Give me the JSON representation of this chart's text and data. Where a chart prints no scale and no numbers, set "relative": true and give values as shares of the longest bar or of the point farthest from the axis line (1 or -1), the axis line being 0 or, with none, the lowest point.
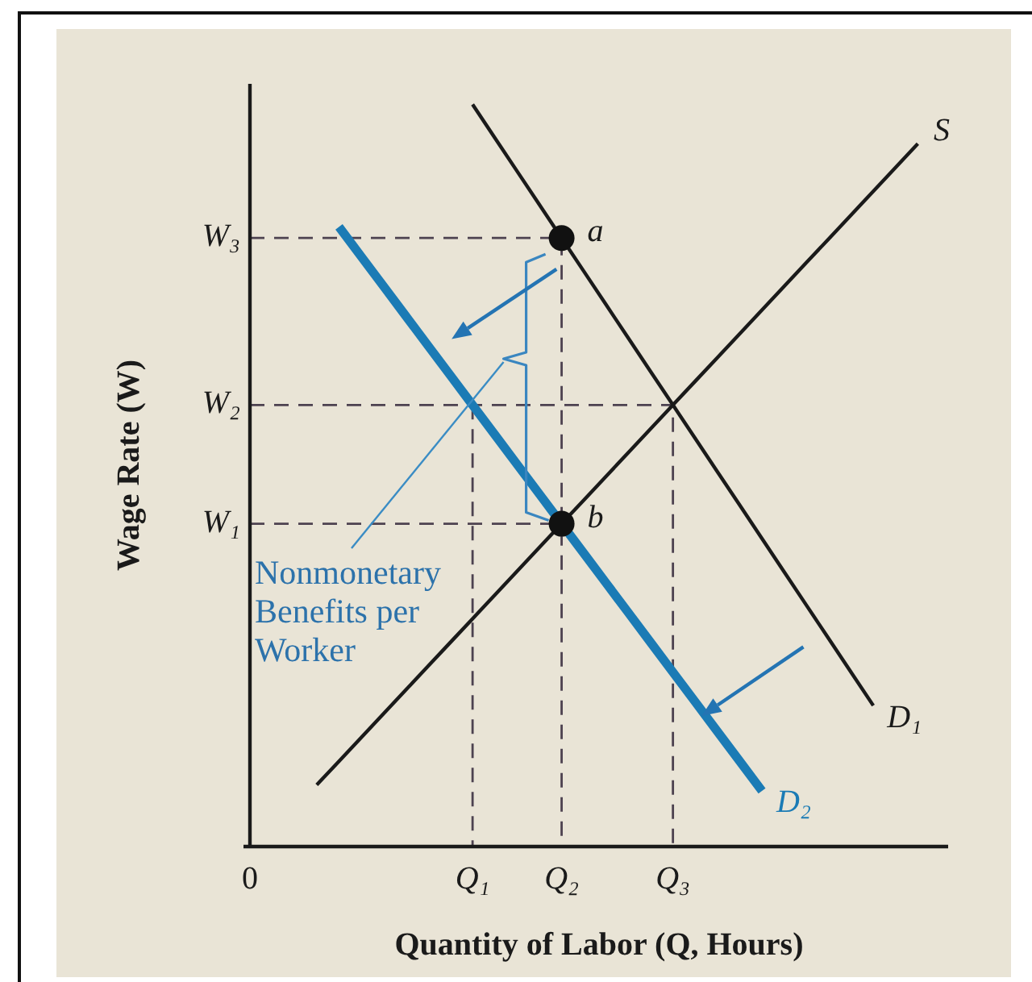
{
  "chart_data": {
    "type": "line",
    "relative": true,
    "xlabel": "Quantity of Labor (Q, Hours)",
    "ylabel": "Wage Rate (W)",
    "categories": [
      "0",
      null,
      null,
      null,
      null,
      null,
      null,
      null,
      null,
      null,
      "Q₁",
      null,
      null,
      null,
      "Q₂",
      null,
      null,
      null,
      null,
      "Q₃",
      null,
      null,
      null,
      null,
      null,
      null,
      null,
      null,
      null,
      null,
      null,
      null
    ],
    "series": [
      {
        "color": "#4d4250",
        "line_style": "dashed",
        "x": [
          "0",
          "Q₂",
          "Q₂"
        ],
        "values": [
          0.82,
          0.82,
          0
        ]
      },
      {
        "color": "#4d4250",
        "line_style": "dashed",
        "x": [
          "0",
          "Q₃",
          "Q₃"
        ],
        "values": [
          0.595,
          0.595,
          0
        ]
      },
      {
        "color": "#4d4250",
        "line_style": "dashed",
        "x": [
          "0",
          "Q₂"
        ],
        "values": [
          0.435,
          0.435
        ]
      },
      {
        "color": "#4d4250",
        "line_style": "dashed",
        "x": [
          "Q₁",
          "Q₁"
        ],
        "values": [
          0.595,
          0
        ]
      },
      {
        "name": "S",
        "color": "#1a1a1a",
        "values": [
          null,
          null,
          null,
          0.083,
          0.115,
          0.147,
          0.179,
          0.211,
          0.243,
          0.275,
          0.307,
          0.339,
          0.371,
          0.403,
          0.435,
          0.467,
          0.499,
          0.531,
          0.563,
          0.595,
          0.627,
          0.659,
          0.691,
          0.723,
          0.755,
          0.787,
          0.819,
          0.851,
          0.883,
          0.915,
          0.947,
          null
        ]
      },
      {
        "name": "D₁",
        "color": "#1a1a1a",
        "values": [
          null,
          null,
          null,
          null,
          null,
          null,
          null,
          null,
          null,
          null,
          1.0,
          0.955,
          0.91,
          0.865,
          0.82,
          0.775,
          0.73,
          0.685,
          0.64,
          0.595,
          0.55,
          0.505,
          0.46,
          0.415,
          0.37,
          0.325,
          0.28,
          0.235,
          0.19,
          null,
          null,
          null
        ]
      },
      {
        "name": "D₂",
        "color": "#1b7bb5",
        "values": [
          null,
          null,
          null,
          null,
          0.835,
          0.795,
          0.755,
          0.715,
          0.675,
          0.635,
          0.595,
          0.555,
          0.515,
          0.475,
          0.435,
          0.395,
          0.355,
          0.315,
          0.275,
          0.235,
          0.195,
          0.155,
          0.115,
          0.075,
          null,
          null,
          null,
          null,
          null,
          null,
          null,
          null
        ]
      },
      {
        "type": "scatter",
        "marker": "circle",
        "color": "#111111",
        "x": [
          "Q₂",
          "Q₂"
        ],
        "values": [
          0.82,
          0.435
        ]
      }
    ],
    "annotations": [
      {
        "text": "W₃",
        "x": "0",
        "y": 0.82
      },
      {
        "text": "W₂",
        "x": "0",
        "y": 0.595
      },
      {
        "text": "W₁",
        "x": "0",
        "y": 0.435
      },
      {
        "text": "a",
        "x": "Q₂",
        "y": 0.82
      },
      {
        "text": "b",
        "x": "Q₂",
        "y": 0.435
      },
      "Nonmonetary Benefits per Worker"
    ]
  }
}
